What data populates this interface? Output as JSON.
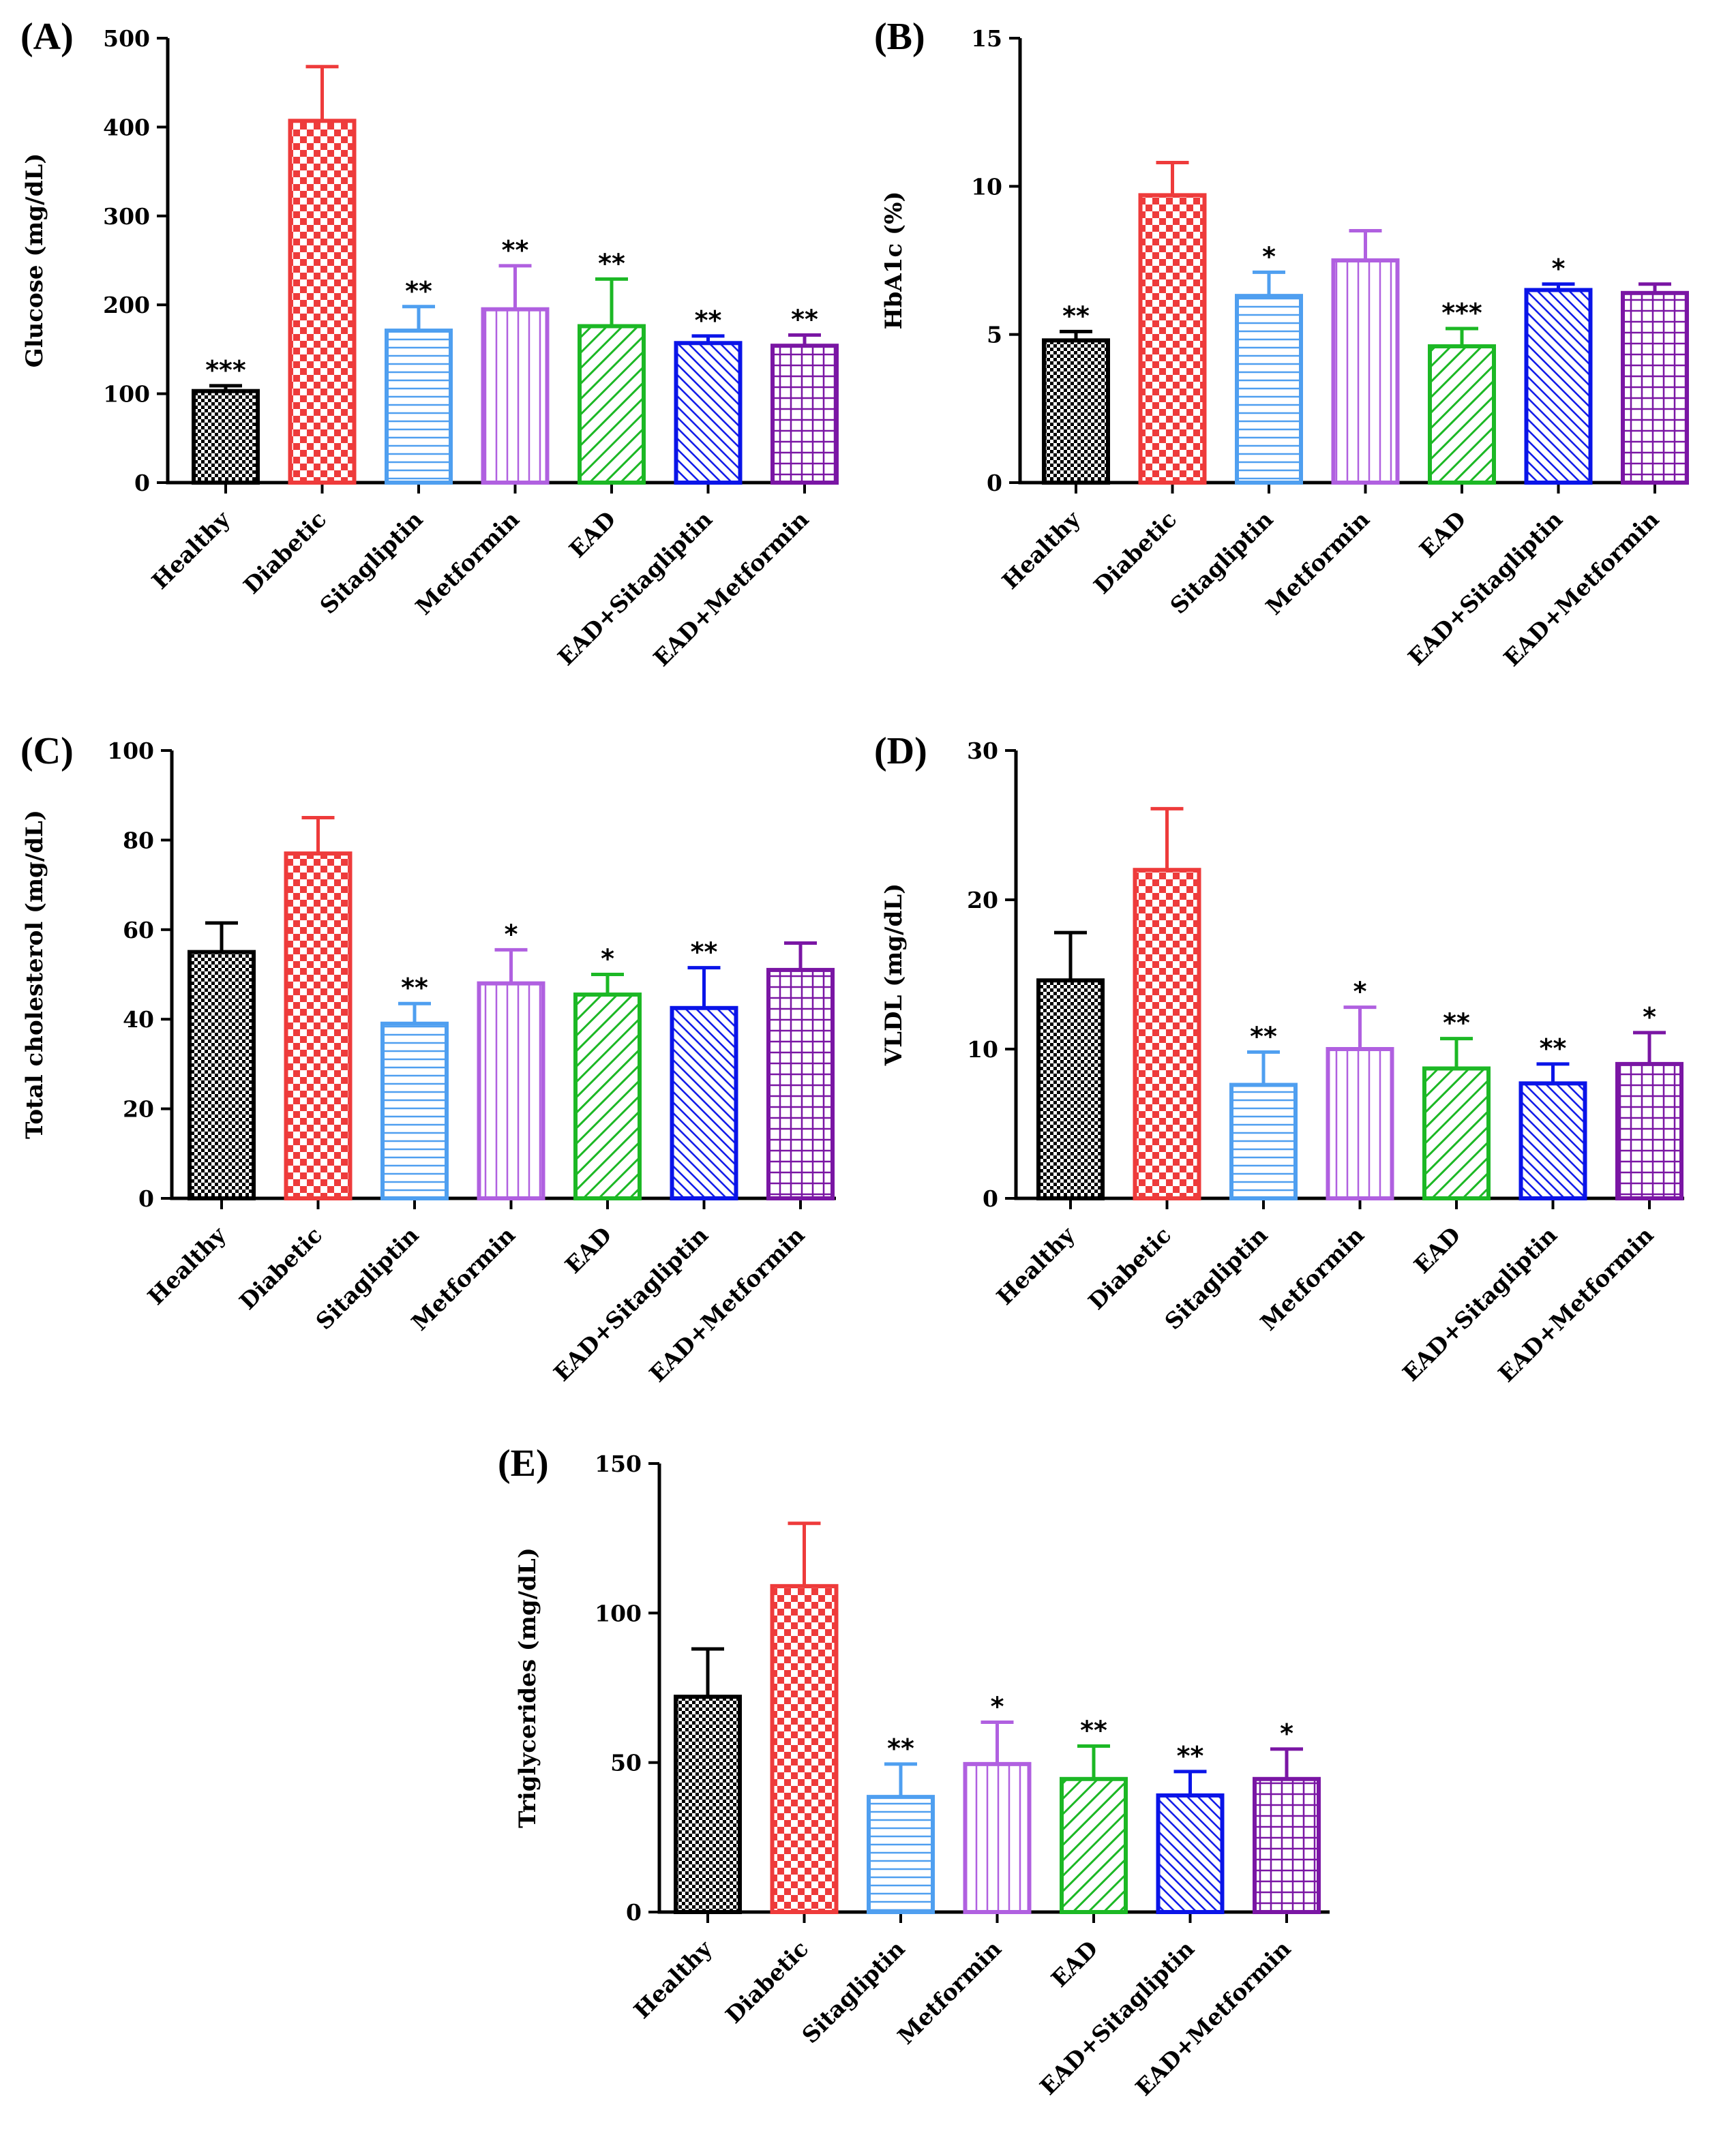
{
  "colors": {
    "Healthy": "#000000",
    "Diabetic": "#ee3b3b",
    "Sitagliptin": "#4f9ff0",
    "Metformin": "#b060e0",
    "EAD": "#1cb825",
    "EAD+Sitagliptin": "#0a14e8",
    "EAD+Metformin": "#7a16a4"
  },
  "chart_data": [
    {
      "panel": "(A)",
      "type": "bar",
      "ylabel": "Glucose (mg/dL)",
      "ylim": [
        0,
        500
      ],
      "yticks": [
        "0",
        "100",
        "200",
        "300",
        "400",
        "500"
      ],
      "categories": [
        "Healthy",
        "Diabetic",
        "Sitagliptin",
        "Metformin",
        "EAD",
        "EAD+Sitagliptin",
        "EAD+Metformin"
      ],
      "values": [
        103,
        407,
        171,
        195,
        176,
        157,
        154
      ],
      "errors": [
        6,
        61,
        27,
        49,
        53,
        8,
        12
      ],
      "significance": [
        "***",
        "",
        "**",
        "**",
        "**",
        "**",
        "**"
      ]
    },
    {
      "panel": "(B)",
      "type": "bar",
      "ylabel": "HbA1c (%)",
      "ylim": [
        0,
        15
      ],
      "yticks": [
        "0",
        "5",
        "10",
        "15"
      ],
      "categories": [
        "Healthy",
        "Diabetic",
        "Sitagliptin",
        "Metformin",
        "EAD",
        "EAD+Sitagliptin",
        "EAD+Metformin"
      ],
      "values": [
        4.8,
        9.7,
        6.3,
        7.5,
        4.6,
        6.5,
        6.4
      ],
      "errors": [
        0.3,
        1.1,
        0.8,
        1.0,
        0.6,
        0.2,
        0.3
      ],
      "significance": [
        "**",
        "",
        "*",
        "",
        "***",
        "*",
        ""
      ]
    },
    {
      "panel": "(C)",
      "type": "bar",
      "ylabel": "Total cholesterol (mg/dL)",
      "ylim": [
        0,
        100
      ],
      "yticks": [
        "0",
        "20",
        "40",
        "60",
        "80",
        "100"
      ],
      "categories": [
        "Healthy",
        "Diabetic",
        "Sitagliptin",
        "Metformin",
        "EAD",
        "EAD+Sitagliptin",
        "EAD+Metformin"
      ],
      "values": [
        55,
        77,
        39,
        48,
        45.5,
        42.5,
        51
      ],
      "errors": [
        6.5,
        8,
        4.5,
        7.5,
        4.5,
        9,
        6
      ],
      "significance": [
        "",
        "",
        "**",
        "*",
        "*",
        "**",
        ""
      ]
    },
    {
      "panel": "(D)",
      "type": "bar",
      "ylabel": "VLDL (mg/dL)",
      "ylim": [
        0,
        30
      ],
      "yticks": [
        "0",
        "10",
        "20",
        "30"
      ],
      "categories": [
        "Healthy",
        "Diabetic",
        "Sitagliptin",
        "Metformin",
        "EAD",
        "EAD+Sitagliptin",
        "EAD+Metformin"
      ],
      "values": [
        14.6,
        22,
        7.6,
        10,
        8.7,
        7.7,
        9
      ],
      "errors": [
        3.2,
        4.1,
        2.2,
        2.8,
        2.0,
        1.3,
        2.1
      ],
      "significance": [
        "",
        "",
        "**",
        "*",
        "**",
        "**",
        "*"
      ]
    },
    {
      "panel": "(E)",
      "type": "bar",
      "ylabel": "Triglycerides (mg/dL)",
      "ylim": [
        0,
        150
      ],
      "yticks": [
        "0",
        "50",
        "100",
        "150"
      ],
      "categories": [
        "Healthy",
        "Diabetic",
        "Sitagliptin",
        "Metformin",
        "EAD",
        "EAD+Sitagliptin",
        "EAD+Metformin"
      ],
      "values": [
        72,
        109,
        38.5,
        49.5,
        44.5,
        39,
        44.5
      ],
      "errors": [
        16,
        21,
        11,
        14,
        11,
        8,
        10
      ],
      "significance": [
        "",
        "",
        "**",
        "*",
        "**",
        "**",
        "*"
      ]
    }
  ]
}
